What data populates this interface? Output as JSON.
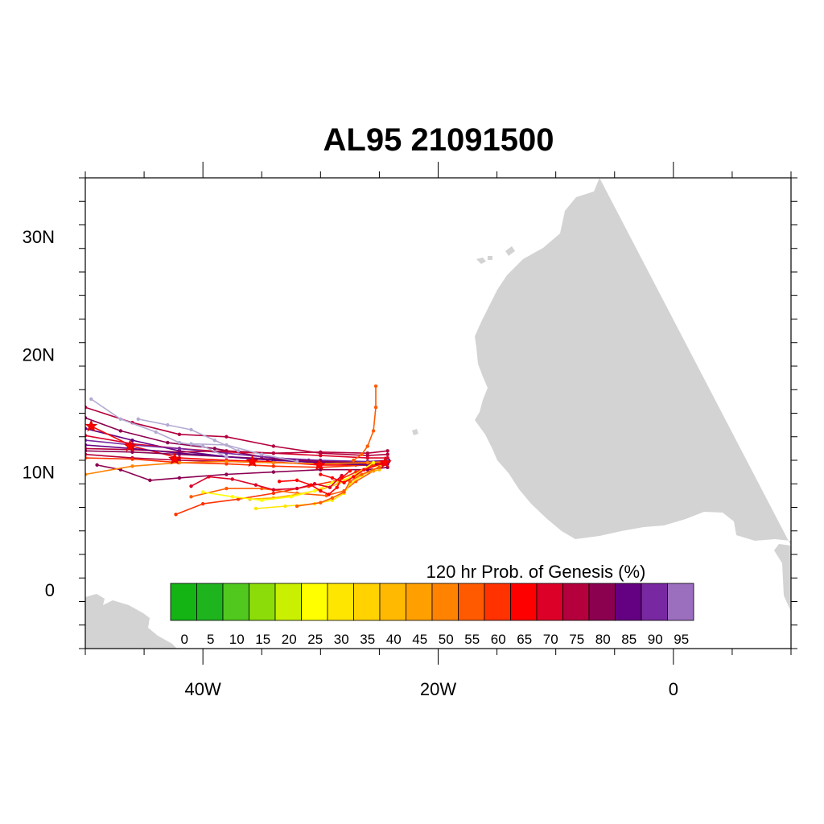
{
  "title": "AL95 21091500",
  "map": {
    "lon_range": [
      -50,
      10
    ],
    "lat_range": [
      -5,
      35
    ],
    "land_color": "#d3d3d3",
    "ocean_color": "#ffffff",
    "lat_labels": [
      {
        "value": 30,
        "text": "30N"
      },
      {
        "value": 20,
        "text": "20N"
      },
      {
        "value": 10,
        "text": "10N"
      },
      {
        "value": 0,
        "text": "0"
      }
    ],
    "lon_labels": [
      {
        "value": -40,
        "text": "40W"
      },
      {
        "value": -20,
        "text": "20W"
      },
      {
        "value": 0,
        "text": "0"
      }
    ]
  },
  "colorbar": {
    "title": "120 hr Prob. of Genesis (%)",
    "labels": [
      "0",
      "5",
      "10",
      "15",
      "20",
      "25",
      "30",
      "35",
      "40",
      "45",
      "50",
      "55",
      "60",
      "65",
      "70",
      "75",
      "80",
      "85",
      "90",
      "95"
    ],
    "colors": [
      "#14b414",
      "#1eb41e",
      "#50c81e",
      "#8cdc0a",
      "#c8f000",
      "#ffff00",
      "#ffe600",
      "#ffd200",
      "#ffb900",
      "#ffa000",
      "#ff8200",
      "#ff5a00",
      "#ff3200",
      "#ff0000",
      "#dc0028",
      "#b4003c",
      "#8c0050",
      "#640082",
      "#7828a0",
      "#9b6ebe"
    ]
  },
  "tracks": [
    {
      "color": "#b4003c",
      "points": [
        [
          -50,
          15.5
        ],
        [
          -46,
          14.2
        ],
        [
          -42,
          13.2
        ],
        [
          -38,
          13.0
        ],
        [
          -34,
          12.2
        ],
        [
          -30,
          11.6
        ],
        [
          -26,
          11.4
        ],
        [
          -24.3,
          11.5
        ]
      ]
    },
    {
      "color": "#8c0050",
      "points": [
        [
          -50,
          14.6
        ],
        [
          -47,
          13.5
        ],
        [
          -43,
          12.5
        ],
        [
          -39,
          12.0
        ],
        [
          -35,
          11.3
        ],
        [
          -31,
          11.0
        ],
        [
          -27,
          10.8
        ],
        [
          -24.2,
          11.0
        ]
      ]
    },
    {
      "color": "#640082",
      "points": [
        [
          -50,
          13.7
        ],
        [
          -46,
          12.7
        ],
        [
          -42,
          11.8
        ],
        [
          -38,
          11.3
        ],
        [
          -34,
          11.0
        ],
        [
          -30,
          10.8
        ],
        [
          -26,
          10.7
        ],
        [
          -24.2,
          10.9
        ]
      ]
    },
    {
      "color": "#ff0000",
      "points": [
        [
          -49.5,
          13.9
        ],
        [
          -46,
          12.2
        ],
        [
          -42,
          11.2
        ],
        [
          -38,
          11.0
        ],
        [
          -34.5,
          10.9
        ],
        [
          -30,
          10.6
        ],
        [
          -27,
          10.6
        ],
        [
          -24.3,
          10.8
        ]
      ]
    },
    {
      "color": "#dc0028",
      "points": [
        [
          -50,
          13.1
        ],
        [
          -46,
          12.4
        ],
        [
          -42,
          12.0
        ],
        [
          -38,
          11.7
        ],
        [
          -34,
          11.6
        ],
        [
          -30,
          11.4
        ],
        [
          -26,
          11.2
        ],
        [
          -24.3,
          11.2
        ]
      ]
    },
    {
      "color": "#7828a0",
      "points": [
        [
          -50,
          12.7
        ],
        [
          -46,
          12.3
        ],
        [
          -42,
          12.0
        ],
        [
          -38,
          11.6
        ],
        [
          -34,
          11.2
        ],
        [
          -30,
          11.0
        ],
        [
          -26,
          10.9
        ],
        [
          -24.3,
          11.0
        ]
      ]
    },
    {
      "color": "#8c0050",
      "points": [
        [
          -50,
          11.8
        ],
        [
          -46,
          11.7
        ],
        [
          -42,
          11.5
        ],
        [
          -38,
          11.3
        ],
        [
          -34,
          11.1
        ],
        [
          -30,
          10.9
        ],
        [
          -26,
          10.8
        ],
        [
          -24.3,
          10.9
        ]
      ]
    },
    {
      "color": "#b4003c",
      "points": [
        [
          -50,
          11.5
        ],
        [
          -46,
          11.2
        ],
        [
          -42,
          11.0
        ],
        [
          -38,
          10.9
        ],
        [
          -34,
          10.8
        ],
        [
          -30,
          10.7
        ],
        [
          -26,
          10.8
        ],
        [
          -24.3,
          10.9
        ]
      ]
    },
    {
      "color": "#b4003c",
      "points": [
        [
          -50,
          12.0
        ],
        [
          -46,
          11.9
        ],
        [
          -42,
          11.7
        ],
        [
          -38,
          11.8
        ],
        [
          -34,
          11.6
        ],
        [
          -30,
          11.7
        ],
        [
          -26,
          11.6
        ],
        [
          -24.3,
          11.8
        ]
      ]
    },
    {
      "color": "#ff3200",
      "points": [
        [
          -50,
          11.2
        ],
        [
          -46,
          11.1
        ],
        [
          -42,
          10.8
        ],
        [
          -38,
          10.7
        ],
        [
          -34,
          10.5
        ],
        [
          -30,
          10.4
        ],
        [
          -26,
          10.6
        ],
        [
          -24.3,
          10.8
        ]
      ]
    },
    {
      "color": "#8c0050",
      "points": [
        [
          -49,
          10.6
        ],
        [
          -47,
          10.2
        ],
        [
          -44.5,
          9.3
        ],
        [
          -42,
          9.5
        ],
        [
          -38,
          9.8
        ],
        [
          -34,
          10.0
        ],
        [
          -30,
          10.2
        ],
        [
          -26,
          10.2
        ],
        [
          -24.3,
          10.4
        ]
      ]
    },
    {
      "color": "#640082",
      "points": [
        [
          -50,
          12.3
        ],
        [
          -46,
          12.0
        ],
        [
          -42,
          11.6
        ],
        [
          -38,
          11.3
        ],
        [
          -34,
          11.0
        ],
        [
          -30,
          10.8
        ],
        [
          -26,
          10.6
        ],
        [
          -24.3,
          10.7
        ]
      ]
    },
    {
      "color": "#ff8200",
      "points": [
        [
          -50,
          9.8
        ],
        [
          -46,
          10.5
        ],
        [
          -42,
          10.8
        ],
        [
          -38,
          10.9
        ],
        [
          -34,
          10.8
        ],
        [
          -30,
          10.7
        ],
        [
          -26,
          10.8
        ],
        [
          -24.3,
          10.9
        ]
      ]
    },
    {
      "color": "#b4aad2",
      "points": [
        [
          -49.5,
          16.2
        ],
        [
          -47,
          14.5
        ],
        [
          -44,
          13.4
        ],
        [
          -42,
          12.5
        ],
        [
          -40,
          12.2
        ],
        [
          -38,
          11.3
        ]
      ]
    },
    {
      "color": "#b4aad2",
      "points": [
        [
          -45.5,
          14.5
        ],
        [
          -43,
          14.0
        ],
        [
          -41,
          13.6
        ],
        [
          -39,
          12.7
        ],
        [
          -37,
          11.8
        ]
      ]
    },
    {
      "color": "#b4aad2",
      "points": [
        [
          -41,
          12.4
        ],
        [
          -38,
          12.3
        ],
        [
          -35,
          11.5
        ],
        [
          -32,
          10.9
        ]
      ]
    },
    {
      "color": "#ff5a00",
      "points": [
        [
          -25.3,
          17.3
        ],
        [
          -25.3,
          15.5
        ],
        [
          -25.5,
          13.5
        ],
        [
          -26.0,
          12.2
        ],
        [
          -26.5,
          11.5
        ],
        [
          -27.2,
          11.0
        ]
      ]
    },
    {
      "color": "#ff3200",
      "points": [
        [
          -42.3,
          6.4
        ],
        [
          -40,
          7.3
        ],
        [
          -37,
          7.7
        ],
        [
          -34,
          8.2
        ],
        [
          -31,
          8.8
        ],
        [
          -28.5,
          9.3
        ],
        [
          -27,
          10.0
        ],
        [
          -25.5,
          10.6
        ]
      ]
    },
    {
      "color": "#ff5a00",
      "points": [
        [
          -41,
          7.9
        ],
        [
          -38,
          8.6
        ],
        [
          -35,
          8.6
        ],
        [
          -32,
          8.2
        ],
        [
          -29.5,
          8.0
        ],
        [
          -28,
          8.4
        ],
        [
          -27,
          9.2
        ],
        [
          -25.5,
          10.1
        ]
      ]
    },
    {
      "color": "#ffe600",
      "points": [
        [
          -35.5,
          6.9
        ],
        [
          -33,
          7.1
        ],
        [
          -30.5,
          7.3
        ],
        [
          -29,
          7.6
        ],
        [
          -28,
          8.2
        ],
        [
          -27.5,
          9.0
        ],
        [
          -26.5,
          9.7
        ],
        [
          -25,
          10.5
        ]
      ]
    },
    {
      "color": "#ffb900",
      "points": [
        [
          -36,
          7.7
        ],
        [
          -34,
          7.8
        ],
        [
          -32,
          8.1
        ],
        [
          -30,
          8.5
        ],
        [
          -28.5,
          9.0
        ],
        [
          -27,
          9.7
        ],
        [
          -25,
          10.2
        ]
      ]
    },
    {
      "color": "#ffff00",
      "points": [
        [
          -40,
          8.3
        ],
        [
          -37.5,
          7.9
        ],
        [
          -35,
          7.6
        ],
        [
          -32.5,
          7.9
        ],
        [
          -30.5,
          8.4
        ],
        [
          -29,
          9.1
        ],
        [
          -27.5,
          9.5
        ],
        [
          -25.5,
          10.8
        ]
      ]
    },
    {
      "color": "#dc0028",
      "points": [
        [
          -41,
          8.8
        ],
        [
          -39.5,
          9.6
        ],
        [
          -37.5,
          9.4
        ],
        [
          -35.5,
          8.9
        ],
        [
          -34,
          8.5
        ],
        [
          -32,
          8.6
        ],
        [
          -30.5,
          9.0
        ],
        [
          -29.2,
          8.7
        ],
        [
          -28.2,
          9.7
        ]
      ]
    },
    {
      "color": "#ff0000",
      "points": [
        [
          -33.5,
          9.2
        ],
        [
          -32,
          9.3
        ],
        [
          -30.8,
          8.9
        ],
        [
          -30,
          8.4
        ],
        [
          -29.3,
          8.1
        ],
        [
          -28.6,
          8.7
        ],
        [
          -28.2,
          9.5
        ],
        [
          -27.5,
          10.1
        ]
      ]
    },
    {
      "color": "#ff5a00",
      "points": [
        [
          -32,
          7.1
        ],
        [
          -30,
          7.4
        ],
        [
          -29,
          7.8
        ],
        [
          -28,
          8.3
        ],
        [
          -27.5,
          9.2
        ],
        [
          -26.5,
          9.8
        ],
        [
          -25,
          10.4
        ]
      ]
    },
    {
      "color": "#ff0000",
      "points": [
        [
          -30,
          9.8
        ],
        [
          -29,
          9.5
        ],
        [
          -28,
          9.1
        ],
        [
          -27.2,
          9.6
        ],
        [
          -26.3,
          10.2
        ],
        [
          -24.8,
          10.7
        ]
      ]
    }
  ],
  "star_markers": [
    [
      -49.5,
      13.9
    ],
    [
      -46.2,
      12.2
    ],
    [
      -42.4,
      11.1
    ],
    [
      -35.8,
      10.9
    ],
    [
      -30.1,
      10.6
    ],
    [
      -24.5,
      10.8
    ]
  ]
}
